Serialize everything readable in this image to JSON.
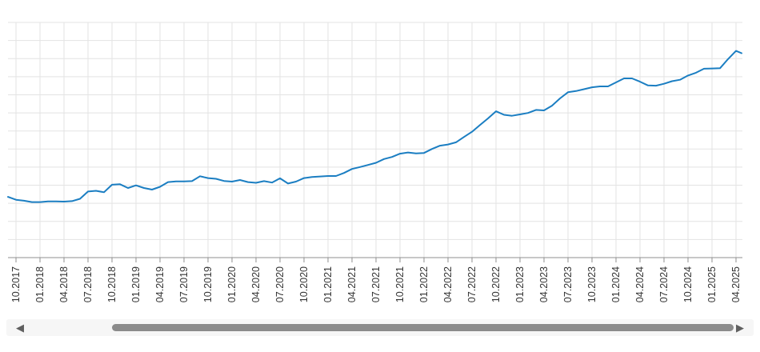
{
  "chart_data": {
    "type": "line",
    "title": "",
    "xlabel": "",
    "ylabel": "",
    "grid": true,
    "legend": false,
    "x_tick_labels": [
      "10.2017",
      "01.2018",
      "04.2018",
      "07.2018",
      "10.2018",
      "01.2019",
      "04.2019",
      "07.2019",
      "10.2019",
      "01.2020",
      "04.2020",
      "07.2020",
      "10.2020",
      "01.2021",
      "04.2021",
      "07.2021",
      "10.2021",
      "01.2022",
      "04.2022",
      "07.2022",
      "10.2022",
      "01.2023",
      "04.2023",
      "07.2023",
      "10.2023",
      "01.2024",
      "04.2024",
      "07.2024",
      "10.2024",
      "01.2025",
      "04.2025"
    ],
    "ylim": [
      0,
      100
    ],
    "y_scale_note": "no y-axis shown; values are normalized percent of plot height",
    "series": [
      {
        "name": "index-line",
        "color": "#1b7ec2",
        "frequency": "monthly",
        "start_month": "09.2017",
        "end_month": "05.2025",
        "values": [
          25.8,
          24.6,
          24.2,
          23.6,
          23.6,
          23.9,
          23.9,
          23.8,
          24.0,
          25.0,
          28.1,
          28.4,
          27.8,
          31.0,
          31.2,
          29.6,
          30.7,
          29.6,
          28.9,
          30.1,
          32.1,
          32.4,
          32.4,
          32.5,
          34.6,
          33.8,
          33.5,
          32.6,
          32.3,
          33.0,
          32.1,
          31.8,
          32.5,
          31.9,
          33.7,
          31.5,
          32.3,
          33.8,
          34.3,
          34.5,
          34.7,
          34.7,
          36.0,
          37.7,
          38.5,
          39.4,
          40.3,
          41.9,
          42.8,
          44.2,
          44.7,
          44.3,
          44.5,
          46.2,
          47.6,
          48.1,
          49.0,
          51.3,
          53.5,
          56.4,
          59.2,
          62.2,
          60.7,
          60.3,
          60.9,
          61.5,
          62.8,
          62.6,
          64.6,
          67.7,
          70.3,
          70.8,
          71.6,
          72.4,
          72.8,
          72.8,
          74.5,
          76.2,
          76.2,
          74.8,
          73.2,
          73.1,
          73.9,
          75.0,
          75.6,
          77.4,
          78.6,
          80.3,
          80.4,
          80.5,
          84.4,
          87.9,
          86.9
        ]
      }
    ]
  },
  "colors": {
    "grid": "#e3e3e3",
    "axis": "#8f8f8f",
    "tick": "#8f8f8f",
    "tick_label": "#333333",
    "line": "#1b7ec2",
    "scroll_track": "#f6f6f6",
    "scroll_thumb": "#8b8b8b",
    "scroll_arrow": "#5f5f5f"
  },
  "scrollbar": {
    "left_arrow": "◀",
    "right_arrow": "▶",
    "thumb_left_pct": 14.1,
    "thumb_width_pct": 83.2
  }
}
